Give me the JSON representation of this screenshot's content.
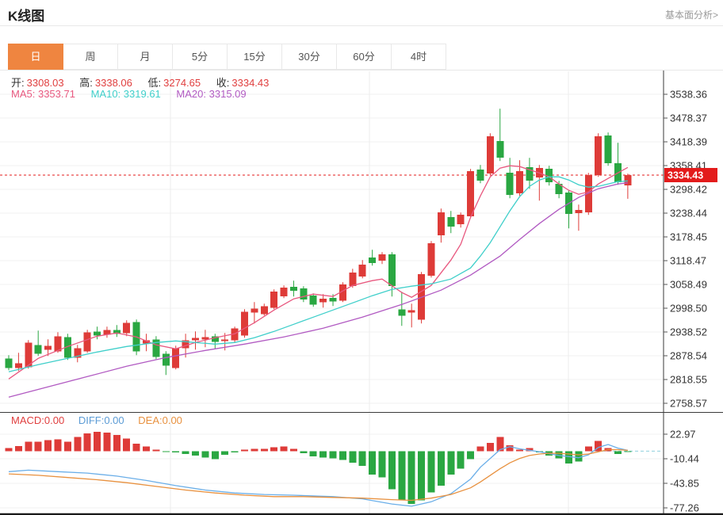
{
  "header": {
    "title": "K线图",
    "link_label": "基本面分析>"
  },
  "tabs": {
    "items": [
      "日",
      "周",
      "月",
      "5分",
      "15分",
      "30分",
      "60分",
      "4时"
    ],
    "selected_index": 0
  },
  "legend": {
    "open_label": "开:",
    "open_value": "3308.03",
    "high_label": "高:",
    "high_value": "3338.06",
    "low_label": "低:",
    "low_value": "3274.65",
    "close_label": "收:",
    "close_value": "3334.43",
    "ma5_label": "MA5:",
    "ma5_value": "3353.71",
    "ma10_label": "MA10:",
    "ma10_value": "3319.61",
    "ma20_label": "MA20:",
    "ma20_value": "3315.09"
  },
  "macd_legend": {
    "macd_label": "MACD:",
    "macd_value": "0.00",
    "diff_label": "DIFF:",
    "diff_value": "0.00",
    "dea_label": "DEA:",
    "dea_value": "0.00"
  },
  "colors": {
    "up": "#de3b38",
    "down": "#2aa742",
    "tab_active": "#ef8540",
    "price_tag_bg": "#e31b1b",
    "price_line": "#e31b1b",
    "ma5": "#e8587f",
    "ma10": "#3fcfca",
    "ma20": "#b15ac2",
    "diff_line": "#6aaee8",
    "dea_line": "#e8913f",
    "zero_dash": "#8fd0dd",
    "axis_text": "#333333",
    "grid": "#f2f2f2",
    "frame": "#3a3a3a"
  },
  "chart_data": [
    {
      "type": "candlestick",
      "title": "K线图",
      "period": "日",
      "legend_position": "top-left",
      "grid": true,
      "ylim": [
        2758.57,
        3538.36
      ],
      "y_ticks": [
        3538.36,
        3478.37,
        3418.39,
        3358.41,
        3298.42,
        3238.44,
        3178.45,
        3118.47,
        3058.49,
        2998.5,
        2938.52,
        2878.54,
        2818.55,
        2758.57
      ],
      "last_price": 3334.43,
      "last_price_label": "3334.43",
      "ohlc_legend": {
        "open": 3308.03,
        "high": 3338.06,
        "low": 3274.65,
        "close": 3334.43
      },
      "candles_ohlc": [
        [
          2872,
          2880,
          2842,
          2848
        ],
        [
          2848,
          2886,
          2840,
          2860
        ],
        [
          2850,
          2918,
          2846,
          2912
        ],
        [
          2906,
          2942,
          2878,
          2884
        ],
        [
          2894,
          2920,
          2878,
          2904
        ],
        [
          2890,
          2938,
          2886,
          2928
        ],
        [
          2926,
          2934,
          2868,
          2874
        ],
        [
          2874,
          2906,
          2862,
          2898
        ],
        [
          2890,
          2944,
          2886,
          2938
        ],
        [
          2940,
          2952,
          2920,
          2930
        ],
        [
          2932,
          2952,
          2924,
          2944
        ],
        [
          2944,
          2956,
          2926,
          2934
        ],
        [
          2936,
          2968,
          2928,
          2962
        ],
        [
          2964,
          2970,
          2880,
          2890
        ],
        [
          2910,
          2934,
          2890,
          2918
        ],
        [
          2920,
          2928,
          2870,
          2876
        ],
        [
          2884,
          2890,
          2830,
          2854
        ],
        [
          2848,
          2904,
          2844,
          2898
        ],
        [
          2898,
          2934,
          2874,
          2918
        ],
        [
          2918,
          2940,
          2894,
          2924
        ],
        [
          2920,
          2944,
          2900,
          2926
        ],
        [
          2928,
          2934,
          2896,
          2914
        ],
        [
          2916,
          2936,
          2892,
          2920
        ],
        [
          2918,
          2952,
          2912,
          2948
        ],
        [
          2930,
          2996,
          2924,
          2990
        ],
        [
          2988,
          3014,
          2960,
          2998
        ],
        [
          2984,
          3010,
          2980,
          3004
        ],
        [
          3000,
          3046,
          2996,
          3040
        ],
        [
          3028,
          3056,
          3024,
          3050
        ],
        [
          3052,
          3068,
          3028,
          3042
        ],
        [
          3048,
          3054,
          3014,
          3020
        ],
        [
          3030,
          3036,
          3002,
          3008
        ],
        [
          3014,
          3034,
          3000,
          3022
        ],
        [
          3024,
          3034,
          3004,
          3016
        ],
        [
          3018,
          3064,
          3014,
          3058
        ],
        [
          3054,
          3098,
          3050,
          3088
        ],
        [
          3078,
          3120,
          3074,
          3108
        ],
        [
          3126,
          3146,
          3106,
          3112
        ],
        [
          3118,
          3140,
          3110,
          3134
        ],
        [
          3134,
          3140,
          3028,
          3054
        ],
        [
          2996,
          3040,
          2954,
          2980
        ],
        [
          2988,
          3010,
          2950,
          2994
        ],
        [
          2970,
          3090,
          2960,
          3084
        ],
        [
          3080,
          3168,
          3076,
          3162
        ],
        [
          3182,
          3250,
          3164,
          3240
        ],
        [
          3228,
          3244,
          3188,
          3204
        ],
        [
          3210,
          3240,
          3202,
          3234
        ],
        [
          3230,
          3350,
          3226,
          3344
        ],
        [
          3348,
          3360,
          3314,
          3320
        ],
        [
          3338,
          3440,
          3334,
          3432
        ],
        [
          3420,
          3502,
          3370,
          3378
        ],
        [
          3340,
          3378,
          3276,
          3284
        ],
        [
          3288,
          3372,
          3282,
          3344
        ],
        [
          3354,
          3378,
          3300,
          3320
        ],
        [
          3328,
          3360,
          3270,
          3352
        ],
        [
          3350,
          3358,
          3308,
          3316
        ],
        [
          3312,
          3320,
          3276,
          3286
        ],
        [
          3290,
          3296,
          3200,
          3236
        ],
        [
          3238,
          3260,
          3194,
          3246
        ],
        [
          3240,
          3340,
          3234,
          3334
        ],
        [
          3334,
          3440,
          3330,
          3432
        ],
        [
          3434,
          3442,
          3358,
          3364
        ],
        [
          3364,
          3416,
          3310,
          3316
        ],
        [
          3308.03,
          3338.06,
          3274.65,
          3334.43
        ]
      ],
      "overlays": {
        "ma5": {
          "value": 3353.71,
          "points": [
            [
              0,
              2820
            ],
            [
              3,
              2872
            ],
            [
              6,
              2902
            ],
            [
              9,
              2928
            ],
            [
              11,
              2936
            ],
            [
              13,
              2926
            ],
            [
              15,
              2906
            ],
            [
              17,
              2896
            ],
            [
              19,
              2912
            ],
            [
              21,
              2924
            ],
            [
              23,
              2934
            ],
            [
              25,
              2962
            ],
            [
              27,
              2994
            ],
            [
              29,
              3022
            ],
            [
              31,
              3034
            ],
            [
              33,
              3028
            ],
            [
              35,
              3056
            ],
            [
              37,
              3068
            ],
            [
              38,
              3072
            ],
            [
              40,
              3038
            ],
            [
              41,
              3026
            ],
            [
              43,
              3056
            ],
            [
              45,
              3120
            ],
            [
              46,
              3160
            ],
            [
              47,
              3228
            ],
            [
              48,
              3282
            ],
            [
              49,
              3330
            ],
            [
              50,
              3352
            ],
            [
              51,
              3358
            ],
            [
              52,
              3356
            ],
            [
              53,
              3348
            ],
            [
              54,
              3340
            ],
            [
              55,
              3330
            ],
            [
              56,
              3312
            ],
            [
              57,
              3296
            ],
            [
              58,
              3286
            ],
            [
              59,
              3292
            ],
            [
              60,
              3312
            ],
            [
              61,
              3326
            ],
            [
              62,
              3340
            ],
            [
              63,
              3353.71
            ]
          ]
        },
        "ma10": {
          "value": 3319.61,
          "points": [
            [
              0,
              2838
            ],
            [
              3,
              2856
            ],
            [
              6,
              2872
            ],
            [
              9,
              2888
            ],
            [
              12,
              2902
            ],
            [
              15,
              2912
            ],
            [
              17,
              2916
            ],
            [
              19,
              2912
            ],
            [
              21,
              2908
            ],
            [
              23,
              2912
            ],
            [
              25,
              2924
            ],
            [
              27,
              2940
            ],
            [
              29,
              2958
            ],
            [
              31,
              2976
            ],
            [
              33,
              2994
            ],
            [
              35,
              3012
            ],
            [
              37,
              3030
            ],
            [
              39,
              3046
            ],
            [
              41,
              3054
            ],
            [
              43,
              3060
            ],
            [
              45,
              3072
            ],
            [
              47,
              3100
            ],
            [
              48,
              3130
            ],
            [
              49,
              3164
            ],
            [
              50,
              3204
            ],
            [
              51,
              3244
            ],
            [
              52,
              3280
            ],
            [
              53,
              3306
            ],
            [
              54,
              3322
            ],
            [
              55,
              3330
            ],
            [
              56,
              3330
            ],
            [
              57,
              3322
            ],
            [
              58,
              3310
            ],
            [
              59,
              3304
            ],
            [
              60,
              3306
            ],
            [
              61,
              3312
            ],
            [
              62,
              3318
            ],
            [
              63,
              3319.61
            ]
          ]
        },
        "ma20": {
          "value": 3315.09,
          "points": [
            [
              0,
              2774
            ],
            [
              4,
              2800
            ],
            [
              8,
              2826
            ],
            [
              12,
              2852
            ],
            [
              16,
              2874
            ],
            [
              20,
              2892
            ],
            [
              24,
              2908
            ],
            [
              28,
              2926
            ],
            [
              32,
              2948
            ],
            [
              36,
              2976
            ],
            [
              40,
              3008
            ],
            [
              44,
              3044
            ],
            [
              47,
              3082
            ],
            [
              50,
              3130
            ],
            [
              52,
              3172
            ],
            [
              54,
              3212
            ],
            [
              56,
              3248
            ],
            [
              58,
              3278
            ],
            [
              60,
              3300
            ],
            [
              62,
              3312
            ],
            [
              63,
              3315.09
            ]
          ]
        }
      }
    },
    {
      "type": "bar",
      "title": "MACD",
      "ylim": [
        -77.26,
        22.97
      ],
      "y_ticks": [
        22.97,
        -10.44,
        -43.85,
        -77.26
      ],
      "histogram": [
        4,
        7,
        13,
        13,
        15,
        16,
        13,
        19,
        24,
        26,
        25,
        22,
        17,
        10,
        6,
        2,
        -1,
        -2,
        -4,
        -6,
        -9,
        -11,
        -5,
        -2,
        2,
        3,
        3,
        5,
        6,
        3,
        -3,
        -7,
        -9,
        -10,
        -12,
        -16,
        -20,
        -32,
        -36,
        -52,
        -67,
        -72,
        -67,
        -56,
        -47,
        -32,
        -24,
        -11,
        6,
        11,
        19,
        8,
        2,
        4,
        -2,
        -6,
        -10,
        -17,
        -14,
        6,
        14,
        4,
        -4,
        -1
      ],
      "series": [
        {
          "name": "DIFF",
          "points": [
            [
              0,
              -28
            ],
            [
              2,
              -26
            ],
            [
              5,
              -28
            ],
            [
              8,
              -30
            ],
            [
              11,
              -34
            ],
            [
              14,
              -40
            ],
            [
              17,
              -47
            ],
            [
              20,
              -53
            ],
            [
              23,
              -57
            ],
            [
              26,
              -59
            ],
            [
              29,
              -60
            ],
            [
              33,
              -62
            ],
            [
              36,
              -65
            ],
            [
              39,
              -72
            ],
            [
              41,
              -75
            ],
            [
              43,
              -69
            ],
            [
              45,
              -58
            ],
            [
              47,
              -38
            ],
            [
              48,
              -22
            ],
            [
              49,
              -10
            ],
            [
              50,
              2
            ],
            [
              51,
              6
            ],
            [
              52,
              3
            ],
            [
              54,
              -1
            ],
            [
              56,
              -6
            ],
            [
              58,
              -9
            ],
            [
              59,
              -5
            ],
            [
              60,
              5
            ],
            [
              61,
              9
            ],
            [
              62,
              4
            ],
            [
              63,
              1
            ]
          ]
        },
        {
          "name": "DEA",
          "points": [
            [
              0,
              -31
            ],
            [
              3,
              -33
            ],
            [
              6,
              -36
            ],
            [
              9,
              -39
            ],
            [
              12,
              -43
            ],
            [
              15,
              -48
            ],
            [
              18,
              -53
            ],
            [
              21,
              -57
            ],
            [
              24,
              -60
            ],
            [
              27,
              -62
            ],
            [
              30,
              -62
            ],
            [
              33,
              -63
            ],
            [
              36,
              -64
            ],
            [
              39,
              -66
            ],
            [
              41,
              -67
            ],
            [
              43,
              -64
            ],
            [
              45,
              -59
            ],
            [
              47,
              -50
            ],
            [
              48,
              -42
            ],
            [
              49,
              -33
            ],
            [
              50,
              -24
            ],
            [
              51,
              -16
            ],
            [
              52,
              -10
            ],
            [
              53,
              -6
            ],
            [
              54,
              -4
            ],
            [
              55,
              -3
            ],
            [
              56,
              -3
            ],
            [
              57,
              -4
            ],
            [
              58,
              -5
            ],
            [
              59,
              -4
            ],
            [
              60,
              -1
            ],
            [
              61,
              2
            ],
            [
              62,
              2
            ],
            [
              63,
              1
            ]
          ]
        }
      ]
    }
  ]
}
